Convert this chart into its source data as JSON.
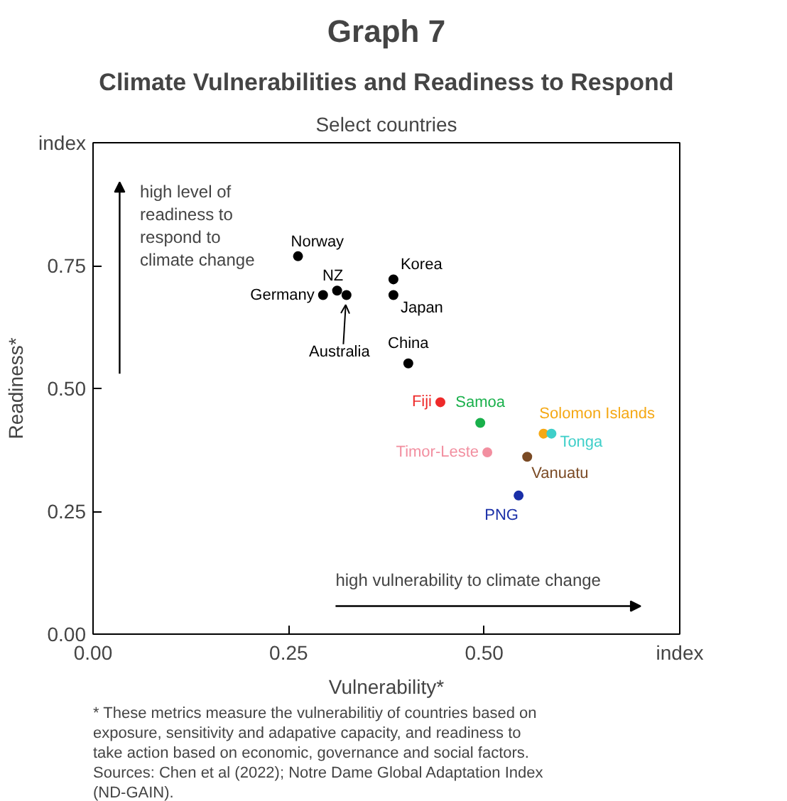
{
  "chart_data": {
    "type": "scatter",
    "title": "Graph 7",
    "subtitle": "Climate Vulnerabilities and Readiness to Respond",
    "xlabel": "Vulnerability*",
    "ylabel": "Readiness*",
    "xlim": [
      0,
      0.75
    ],
    "ylim": [
      0,
      1
    ],
    "xticks": [
      {
        "value": 0,
        "label": "0.00"
      },
      {
        "value": 0.25,
        "label": "0.25"
      },
      {
        "value": 0.5,
        "label": "0.50"
      },
      {
        "value": 0.75,
        "label": "index"
      }
    ],
    "yticks": [
      {
        "value": 0,
        "label": "0.00"
      },
      {
        "value": 0.25,
        "label": "0.25"
      },
      {
        "value": 0.5,
        "label": "0.50"
      },
      {
        "value": 0.75,
        "label": "0.75"
      },
      {
        "value": 1,
        "label": "index"
      }
    ],
    "grid": false,
    "marker": "circle",
    "series": [
      {
        "name": "Norway",
        "color": "#000000",
        "x": [
          0.262
        ],
        "values": [
          0.769
        ]
      },
      {
        "name": "Germany",
        "color": "#000000",
        "x": [
          0.294
        ],
        "values": [
          0.69
        ]
      },
      {
        "name": "NZ",
        "color": "#000000",
        "x": [
          0.312
        ],
        "values": [
          0.699
        ]
      },
      {
        "name": "Australia",
        "color": "#000000",
        "x": [
          0.324
        ],
        "values": [
          0.69
        ]
      },
      {
        "name": "Korea",
        "color": "#000000",
        "x": [
          0.384
        ],
        "values": [
          0.722
        ]
      },
      {
        "name": "Japan",
        "color": "#000000",
        "x": [
          0.384
        ],
        "values": [
          0.69
        ]
      },
      {
        "name": "China",
        "color": "#000000",
        "x": [
          0.403
        ],
        "values": [
          0.551
        ]
      },
      {
        "name": "Fiji",
        "color": "#ee2a2a",
        "x": [
          0.444
        ],
        "values": [
          0.472
        ]
      },
      {
        "name": "Samoa",
        "color": "#19b04b",
        "x": [
          0.495
        ],
        "values": [
          0.43
        ]
      },
      {
        "name": "Timor-Leste",
        "color": "#f28fa0",
        "x": [
          0.504
        ],
        "values": [
          0.37
        ]
      },
      {
        "name": "Solomon Islands",
        "color": "#f5a814",
        "x": [
          0.576
        ],
        "values": [
          0.408
        ]
      },
      {
        "name": "Tonga",
        "color": "#3fcfc9",
        "x": [
          0.586
        ],
        "values": [
          0.408
        ]
      },
      {
        "name": "Vanuatu",
        "color": "#7a4a24",
        "x": [
          0.555
        ],
        "values": [
          0.361
        ]
      },
      {
        "name": "PNG",
        "color": "#1a2fa8",
        "x": [
          0.544
        ],
        "values": [
          0.282
        ]
      }
    ],
    "annotations": [
      "Select countries",
      "high level of readiness to respond to climate change",
      "high vulnerability to climate change",
      "* These metrics measure the vulnerabilitiy of countries based on exposure, sensitivity and adapative capacity, and readiness to take action based on economic, governance and social factors.",
      "Sources: Chen et al (2022); Notre Dame Global Adaptation Index (ND-GAIN)."
    ]
  }
}
